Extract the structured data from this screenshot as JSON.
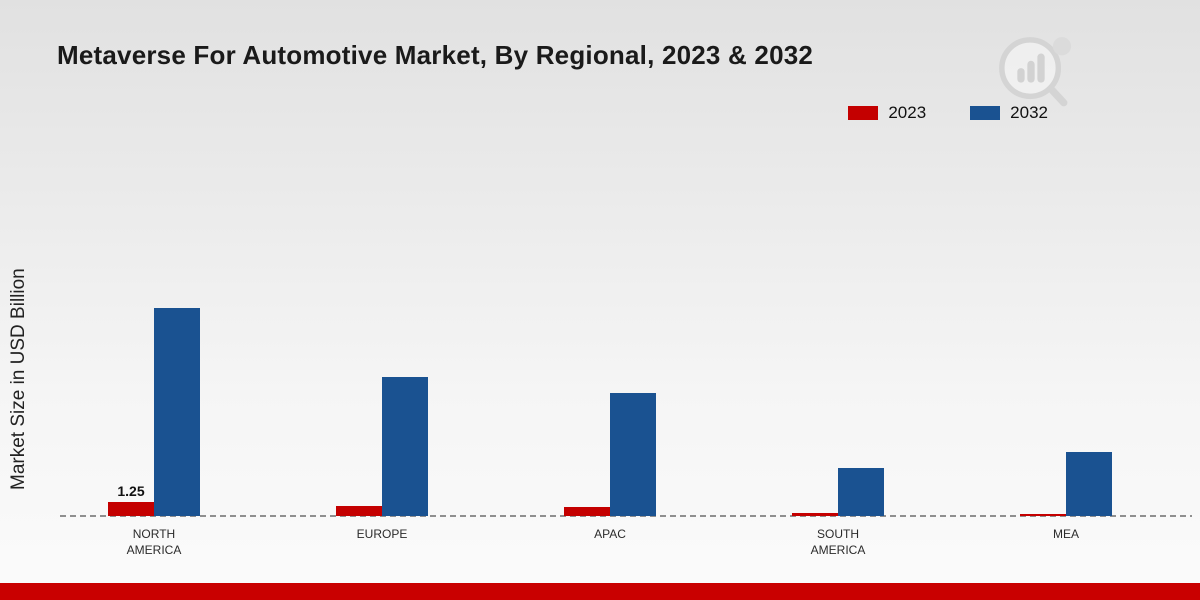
{
  "title": "Metaverse For Automotive Market, By Regional, 2023 & 2032",
  "y_axis_label": "Market Size in USD Billion",
  "legend": {
    "items": [
      {
        "label": "2023",
        "color": "#c40000"
      },
      {
        "label": "2032",
        "color": "#1a5291"
      }
    ]
  },
  "footer": {
    "stripe_color": "#c90000"
  },
  "watermark": {
    "name": "market-research-logo"
  },
  "chart_data": {
    "type": "bar",
    "title": "Metaverse For Automotive Market, By Regional, 2023 & 2032",
    "ylabel": "Market Size in USD Billion",
    "categories": [
      "NORTH AMERICA",
      "EUROPE",
      "APAC",
      "SOUTH AMERICA",
      "MEA"
    ],
    "series": [
      {
        "name": "2023",
        "color": "#c40000",
        "values": [
          1.25,
          0.9,
          0.8,
          0.25,
          0.2
        ]
      },
      {
        "name": "2032",
        "color": "#1a5291",
        "values": [
          18.5,
          12.4,
          10.9,
          4.3,
          5.7
        ]
      }
    ],
    "data_labels": [
      {
        "series": "2023",
        "category": "NORTH AMERICA",
        "text": "1.25"
      }
    ],
    "ylim": [
      0,
      20
    ],
    "grid": false,
    "legend_position": "top-right",
    "baseline_style": "dashed"
  }
}
